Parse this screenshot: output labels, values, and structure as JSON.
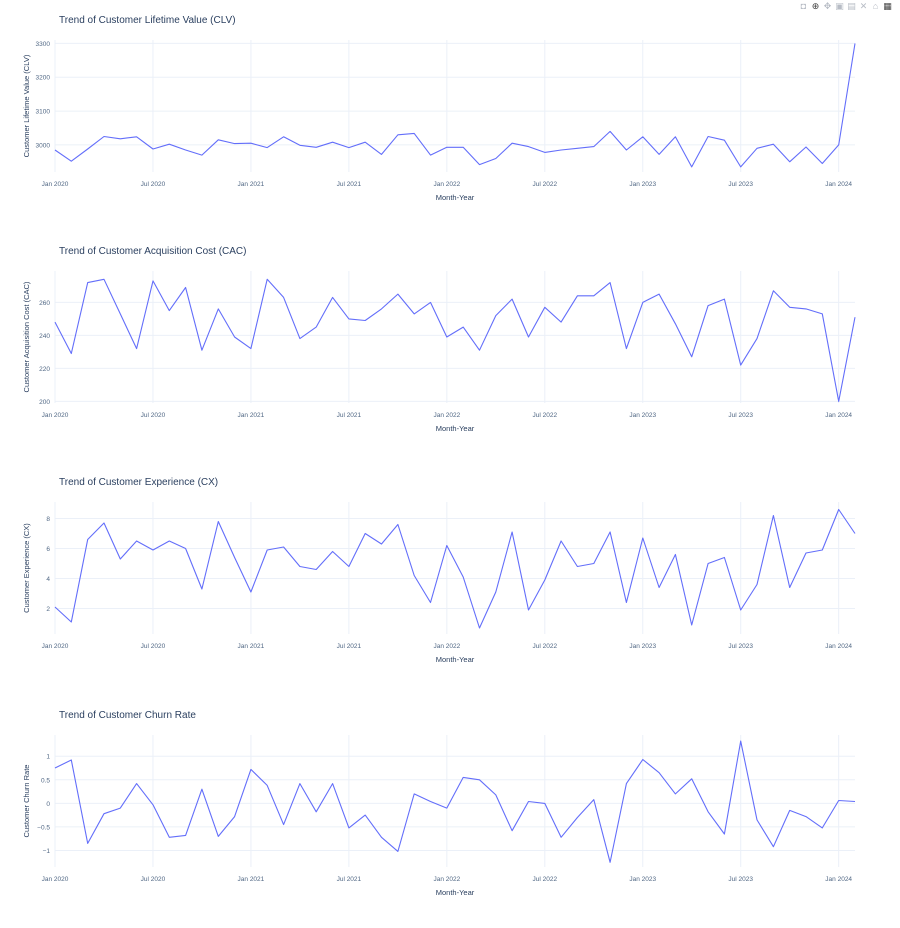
{
  "toolbar": {
    "icons": [
      "camera-icon",
      "zoom-icon",
      "pan-icon",
      "zoom-in-icon",
      "zoom-out-icon",
      "autoscale-icon",
      "reset-axes-icon",
      "plotly-logo-icon"
    ]
  },
  "colors": {
    "line": "#636efa",
    "grid": "#ebf0f8",
    "title": "#2a3f5f",
    "tick": "#506784"
  },
  "x_ticks": [
    "Jan 2020",
    "Jul 2020",
    "Jan 2021",
    "Jul 2021",
    "Jan 2022",
    "Jul 2022",
    "Jan 2023",
    "Jul 2023",
    "Jan 2024"
  ],
  "chart_data": [
    {
      "type": "line",
      "title": "Trend of Customer Lifetime Value (CLV)",
      "xlabel": "Month-Year",
      "ylabel": "Customer Lifetime Value (CLV)",
      "ylim": [
        2920,
        3310
      ],
      "yticks": [
        3000,
        3100,
        3200,
        3300
      ],
      "ytick_labels": [
        "3000",
        "3100",
        "3200",
        "3300"
      ],
      "grid": true,
      "x_start": "Jan 2020",
      "values": [
        2985,
        2952,
        2988,
        3025,
        3018,
        3024,
        2988,
        3002,
        2985,
        2970,
        3015,
        3004,
        3005,
        2992,
        3024,
        2999,
        2993,
        3008,
        2992,
        3008,
        2972,
        3030,
        3034,
        2970,
        2993,
        2993,
        2942,
        2960,
        3005,
        2995,
        2978,
        2985,
        2990,
        2995,
        3040,
        2985,
        3024,
        2972,
        3024,
        2935,
        3025,
        3014,
        2935,
        2990,
        3002,
        2950,
        2994,
        2945,
        3000,
        3300
      ]
    },
    {
      "type": "line",
      "title": "Trend of Customer Acquisition Cost (CAC)",
      "xlabel": "Month-Year",
      "ylabel": "Customer Acquisition Cost (CAC)",
      "ylim": [
        199,
        279
      ],
      "yticks": [
        200,
        220,
        240,
        260
      ],
      "ytick_labels": [
        "200",
        "220",
        "240",
        "260"
      ],
      "grid": true,
      "x_start": "Jan 2020",
      "values": [
        248,
        229,
        272,
        274,
        253,
        232,
        273,
        255,
        269,
        231,
        256,
        239,
        232,
        274,
        263,
        238,
        245,
        263,
        250,
        249,
        256,
        265,
        253,
        260,
        239,
        245,
        231,
        252,
        262,
        239,
        257,
        248,
        264,
        264,
        272,
        232,
        260,
        265,
        247,
        227,
        258,
        262,
        222,
        238,
        267,
        257,
        256,
        253,
        200,
        251
      ]
    },
    {
      "type": "line",
      "title": "Trend of Customer Experience (CX)",
      "xlabel": "Month-Year",
      "ylabel": "Customer Experience (CX)",
      "ylim": [
        0.3,
        9.1
      ],
      "yticks": [
        2,
        4,
        6,
        8
      ],
      "ytick_labels": [
        "2",
        "4",
        "6",
        "8"
      ],
      "grid": true,
      "x_start": "Jan 2020",
      "values": [
        2.1,
        1.1,
        6.6,
        7.7,
        5.3,
        6.5,
        5.9,
        6.5,
        6.0,
        3.3,
        7.8,
        5.4,
        3.1,
        5.9,
        6.1,
        4.8,
        4.6,
        5.8,
        4.8,
        7.0,
        6.3,
        7.6,
        4.2,
        2.4,
        6.2,
        4.1,
        0.7,
        3.1,
        7.1,
        1.9,
        3.9,
        6.5,
        4.8,
        5.0,
        7.1,
        2.4,
        6.7,
        3.4,
        5.6,
        0.9,
        5.0,
        5.4,
        1.9,
        3.6,
        8.2,
        3.4,
        5.7,
        5.9,
        8.6,
        7.0
      ]
    },
    {
      "type": "line",
      "title": "Trend of Customer Churn Rate",
      "xlabel": "Month-Year",
      "ylabel": "Customer Churn Rate",
      "ylim": [
        -1.35,
        1.45
      ],
      "yticks": [
        -1,
        -0.5,
        0,
        0.5,
        1
      ],
      "ytick_labels": [
        "−1",
        "−0.5",
        "0",
        "0.5",
        "1"
      ],
      "grid": true,
      "x_start": "Jan 2020",
      "values": [
        0.75,
        0.92,
        -0.85,
        -0.22,
        -0.1,
        0.42,
        -0.03,
        -0.72,
        -0.68,
        0.3,
        -0.7,
        -0.28,
        0.72,
        0.38,
        -0.45,
        0.42,
        -0.18,
        0.42,
        -0.52,
        -0.25,
        -0.72,
        -1.02,
        0.2,
        0.04,
        -0.1,
        0.55,
        0.5,
        0.18,
        -0.58,
        0.04,
        0.0,
        -0.72,
        -0.3,
        0.08,
        -1.25,
        0.42,
        0.93,
        0.65,
        0.2,
        0.52,
        -0.18,
        -0.65,
        1.32,
        -0.35,
        -0.92,
        -0.15,
        -0.28,
        -0.52,
        0.06,
        0.04
      ]
    }
  ]
}
